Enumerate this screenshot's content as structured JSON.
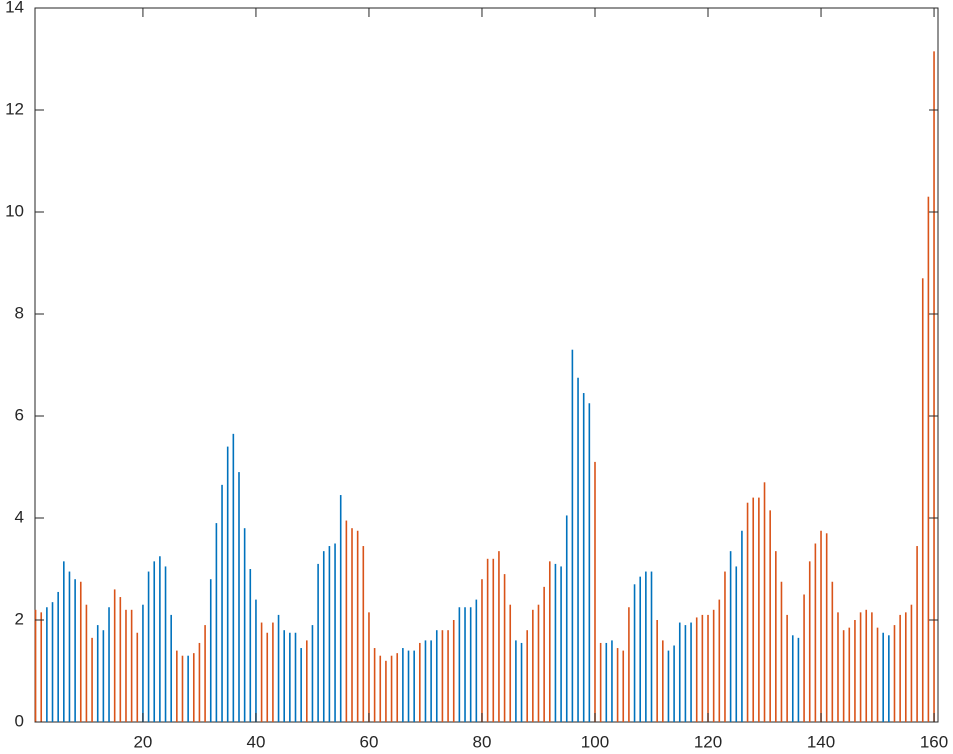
{
  "chart_data": {
    "type": "bar",
    "xlim": [
      0.9,
      160.7
    ],
    "xticks": [
      20,
      40,
      60,
      80,
      100,
      120,
      140,
      160
    ],
    "ylim": [
      0,
      14
    ],
    "yticks": [
      0,
      2,
      4,
      6,
      8,
      10,
      12,
      14
    ],
    "series": [
      {
        "color": "#0072BD",
        "x": [
          3,
          4,
          5,
          6,
          7,
          8,
          12,
          13,
          14,
          20,
          21,
          22,
          23,
          24,
          25,
          28,
          32,
          33,
          34,
          35,
          36,
          37,
          38,
          39,
          40,
          44,
          45,
          46,
          47,
          48,
          50,
          51,
          52,
          53,
          54,
          55,
          66,
          67,
          68,
          70,
          71,
          72,
          76,
          77,
          78,
          79,
          86,
          87,
          93,
          94,
          95,
          96,
          97,
          98,
          99,
          102,
          103,
          107,
          108,
          109,
          110,
          113,
          114,
          115,
          116,
          117,
          124,
          125,
          126,
          135,
          136,
          151,
          152
        ],
        "values": [
          2.25,
          2.35,
          2.55,
          3.15,
          2.95,
          2.8,
          1.9,
          1.8,
          2.25,
          2.3,
          2.95,
          3.15,
          3.25,
          3.05,
          2.1,
          1.3,
          2.8,
          3.9,
          4.65,
          5.4,
          5.65,
          4.9,
          3.8,
          3.0,
          2.4,
          2.1,
          1.8,
          1.75,
          1.75,
          1.45,
          1.9,
          3.1,
          3.35,
          3.45,
          3.5,
          4.45,
          1.45,
          1.4,
          1.4,
          1.6,
          1.6,
          1.8,
          2.25,
          2.25,
          2.25,
          2.4,
          1.6,
          1.55,
          3.1,
          3.05,
          4.05,
          7.3,
          6.75,
          6.45,
          6.25,
          1.55,
          1.6,
          2.7,
          2.85,
          2.95,
          2.95,
          1.4,
          1.5,
          1.95,
          1.9,
          1.95,
          3.35,
          3.05,
          3.75,
          1.7,
          1.65,
          1.75,
          1.7
        ]
      },
      {
        "color": "#D95319",
        "x": [
          1,
          2,
          9,
          10,
          11,
          15,
          16,
          17,
          18,
          19,
          26,
          27,
          29,
          30,
          31,
          41,
          42,
          43,
          49,
          56,
          57,
          58,
          59,
          60,
          61,
          62,
          63,
          64,
          65,
          69,
          73,
          74,
          75,
          80,
          81,
          82,
          83,
          84,
          85,
          88,
          89,
          90,
          91,
          92,
          100,
          101,
          104,
          105,
          106,
          111,
          112,
          118,
          119,
          120,
          121,
          122,
          123,
          127,
          128,
          129,
          130,
          131,
          132,
          133,
          134,
          137,
          138,
          139,
          140,
          141,
          142,
          143,
          144,
          145,
          146,
          147,
          148,
          149,
          150,
          153,
          154,
          155,
          156,
          157,
          158,
          159,
          160
        ],
        "values": [
          2.2,
          2.15,
          2.75,
          2.3,
          1.65,
          2.6,
          2.45,
          2.2,
          2.2,
          1.75,
          1.4,
          1.3,
          1.35,
          1.55,
          1.9,
          1.95,
          1.75,
          1.95,
          1.6,
          3.95,
          3.8,
          3.75,
          3.45,
          2.15,
          1.45,
          1.3,
          1.2,
          1.3,
          1.35,
          1.55,
          1.8,
          1.8,
          2.0,
          2.8,
          3.2,
          3.2,
          3.35,
          2.9,
          2.3,
          1.8,
          2.2,
          2.3,
          2.65,
          3.15,
          5.1,
          1.55,
          1.45,
          1.4,
          2.25,
          2.0,
          1.6,
          2.05,
          2.1,
          2.1,
          2.2,
          2.4,
          2.95,
          4.3,
          4.4,
          4.4,
          4.7,
          4.15,
          3.35,
          2.75,
          2.1,
          2.5,
          3.15,
          3.5,
          3.75,
          3.7,
          2.75,
          2.15,
          1.8,
          1.85,
          2.0,
          2.15,
          2.2,
          2.15,
          1.85,
          1.9,
          2.1,
          2.15,
          2.3,
          3.45,
          8.7,
          10.3,
          13.15
        ]
      }
    ]
  }
}
